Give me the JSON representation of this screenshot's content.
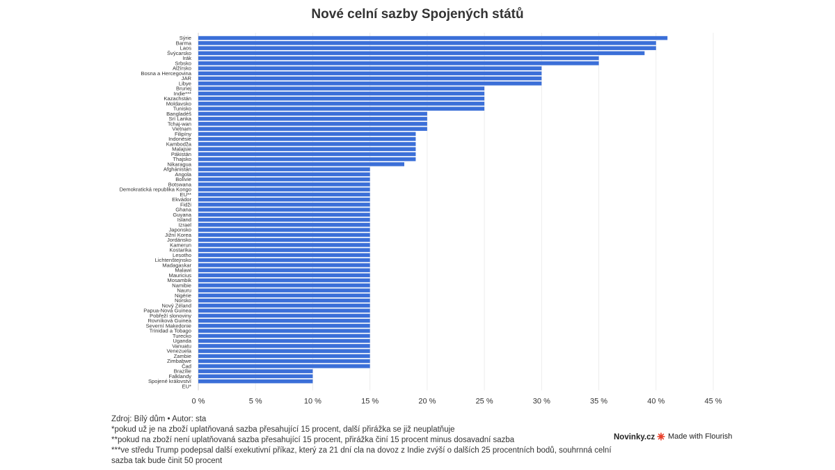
{
  "title": "Nové celní sazby Spojených států",
  "chart_data": {
    "type": "bar",
    "orientation": "horizontal",
    "title": "Nové celní sazby Spojených států",
    "bar_color": "#3b6fd8",
    "xlim": [
      0,
      45
    ],
    "x_ticks": [
      "0 %",
      "5 %",
      "10 %",
      "15 %",
      "20 %",
      "25 %",
      "30 %",
      "35 %",
      "40 %",
      "45 %"
    ],
    "grid": true,
    "categories": [
      "Sýrie",
      "Barma",
      "Laos",
      "Švýcarsko",
      "Irák",
      "Srbsko",
      "Alžírsko",
      "Bosna a Hercegovina",
      "JAR",
      "Libye",
      "Brunej",
      "Indie***",
      "Kazachstán",
      "Moldavsko",
      "Tunisko",
      "Bangladéš",
      "Srí Lanka",
      "Tchaj-wan",
      "Vietnam",
      "Filipíny",
      "Indonésie",
      "Kambodža",
      "Malajsie",
      "Pákistán",
      "Thajsko",
      "Nikaragua",
      "Afghánistán",
      "Angola",
      "Bolívie",
      "Botswana",
      "Demokratická republika Kongo",
      "EU**",
      "Ekvádor",
      "Fidži",
      "Ghana",
      "Guyana",
      "Island",
      "Izrael",
      "Japonsko",
      "Jižní Korea",
      "Jordánsko",
      "Kamerun",
      "Kostarika",
      "Lesotho",
      "Lichtenštejnsko",
      "Madagaskar",
      "Malawi",
      "Mauricius",
      "Mosambik",
      "Namibie",
      "Nauru",
      "Nigérie",
      "Norsko",
      "Nový Zéland",
      "Papua-Nová Guinea",
      "Pobřeží slonoviny",
      "Rovníková Guinea",
      "Severní Makedonie",
      "Trinidad a Tobago",
      "Turecko",
      "Uganda",
      "Vanuatu",
      "Venezuela",
      "Zambie",
      "Zimbabwe",
      "Čad",
      "Brazílie",
      "Falklandy",
      "Spojené království",
      "EU*"
    ],
    "values": [
      41,
      40,
      40,
      39,
      35,
      35,
      30,
      30,
      30,
      30,
      25,
      25,
      25,
      25,
      25,
      20,
      20,
      20,
      20,
      19,
      19,
      19,
      19,
      19,
      19,
      18,
      15,
      15,
      15,
      15,
      15,
      15,
      15,
      15,
      15,
      15,
      15,
      15,
      15,
      15,
      15,
      15,
      15,
      15,
      15,
      15,
      15,
      15,
      15,
      15,
      15,
      15,
      15,
      15,
      15,
      15,
      15,
      15,
      15,
      15,
      15,
      15,
      15,
      15,
      15,
      15,
      10,
      10,
      10,
      0
    ]
  },
  "footer": {
    "source": "Zdroj: Bílý dům • Autor: sta",
    "note1": "*pokud už je na zboží uplatňovaná sazba přesahující 15 procent, další přirážka se již neuplatňuje",
    "note2": "**pokud na zboží není uplatňovaná sazba přesahující 15 procent, přirážka činí 15 procent minus dosavadní sazba",
    "note3": "***ve středu Trump podepsal další exekutivní příkaz, který za 21 dní cla na dovoz z Indie zvýší o dalších 25 procentních bodů, souhrnná celní sazba tak bude činit 50 procent"
  },
  "branding": {
    "publisher": "Novinky.cz",
    "made_with": "Made with Flourish",
    "flourish_color": "#e8412c"
  }
}
